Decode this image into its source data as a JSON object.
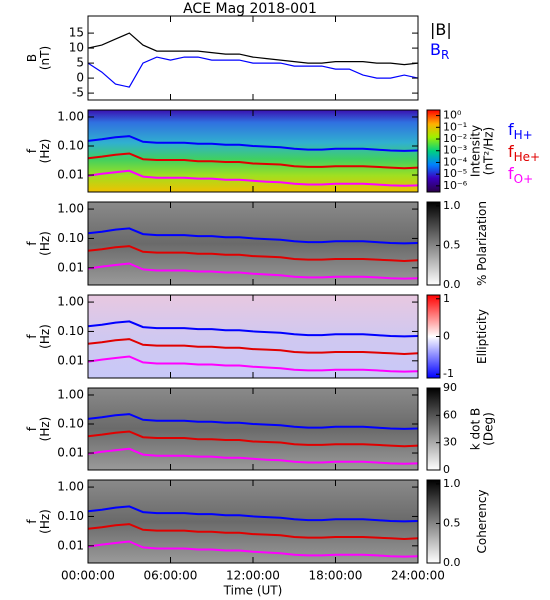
{
  "chart_data": [
    {
      "type": "line",
      "title": "ACE Mag 2018-001",
      "ylabel": [
        "B",
        "(nT)"
      ],
      "x": [
        0,
        1,
        2,
        3,
        4,
        5,
        6,
        7,
        8,
        9,
        10,
        11,
        12,
        13,
        14,
        15,
        16,
        17,
        18,
        19,
        20,
        21,
        22,
        23,
        24
      ],
      "xlim": [
        0,
        24
      ],
      "ylim": [
        -7.3,
        20.7
      ],
      "yticks": [
        -5,
        0,
        5,
        10,
        15
      ],
      "legend": true,
      "series": [
        {
          "name": "|B|",
          "color": "#000000",
          "values": [
            10,
            11,
            13,
            15,
            11,
            9,
            9,
            9,
            9,
            8.5,
            8,
            8,
            7,
            6.5,
            6,
            5.5,
            5,
            5,
            5.5,
            5.5,
            5.5,
            5,
            5,
            4.5,
            5
          ]
        },
        {
          "name": "B",
          "subscript": "R",
          "color": "#0000ff",
          "values": [
            5,
            2,
            -2,
            -3,
            5,
            7,
            6,
            7,
            7,
            6,
            6,
            6,
            5,
            5,
            5,
            4,
            4,
            4,
            3,
            3,
            1,
            0,
            0,
            1,
            0
          ]
        }
      ]
    },
    {
      "type": "spectrogram",
      "ylabel": [
        "f",
        "(Hz)"
      ],
      "ylog": true,
      "colormap": "rainbow",
      "x": [
        0,
        1,
        2,
        3,
        4,
        5,
        6,
        7,
        8,
        9,
        10,
        11,
        12,
        13,
        14,
        15,
        16,
        17,
        18,
        19,
        20,
        21,
        22,
        23,
        24
      ],
      "xlim": [
        0,
        24
      ],
      "ylim": [
        0.0026,
        1.74
      ],
      "yticks": [
        {
          "value": 0.01,
          "label": "0.01"
        },
        {
          "value": 0.1,
          "label": "0.10"
        },
        {
          "value": 1,
          "label": "1.00"
        }
      ],
      "clabel": [
        "Intensity",
        "(nT²/Hz)"
      ],
      "clog": true,
      "clim": [
        3e-07,
        3
      ],
      "cticks": [
        {
          "value": 1,
          "label": "10⁰"
        },
        {
          "value": 0.1,
          "label": "10⁻¹"
        },
        {
          "value": 0.01,
          "label": "10⁻²"
        },
        {
          "value": 0.001,
          "label": "10⁻³"
        },
        {
          "value": 0.0001,
          "label": "10⁻⁴"
        },
        {
          "value": 1e-05,
          "label": "10⁻⁵"
        },
        {
          "value": 1e-06,
          "label": "10⁻⁶"
        }
      ],
      "legend": true,
      "series": [
        {
          "name": "f",
          "subscript": "H+",
          "color": "#0000ff",
          "values": [
            0.15,
            0.17,
            0.2,
            0.22,
            0.14,
            0.13,
            0.13,
            0.13,
            0.12,
            0.12,
            0.11,
            0.11,
            0.1,
            0.095,
            0.09,
            0.08,
            0.075,
            0.075,
            0.08,
            0.08,
            0.08,
            0.075,
            0.07,
            0.068,
            0.07
          ]
        },
        {
          "name": "f",
          "subscript": "He+",
          "color": "#e00000",
          "values": [
            0.038,
            0.043,
            0.05,
            0.055,
            0.035,
            0.033,
            0.033,
            0.033,
            0.03,
            0.03,
            0.028,
            0.028,
            0.025,
            0.024,
            0.023,
            0.02,
            0.019,
            0.019,
            0.02,
            0.02,
            0.02,
            0.019,
            0.018,
            0.017,
            0.018
          ]
        },
        {
          "name": "f",
          "subscript": "O+",
          "color": "#ff00ff",
          "values": [
            0.0094,
            0.011,
            0.0125,
            0.014,
            0.0088,
            0.0081,
            0.0081,
            0.0081,
            0.0075,
            0.0075,
            0.0069,
            0.0069,
            0.0063,
            0.0059,
            0.0056,
            0.005,
            0.0047,
            0.0047,
            0.005,
            0.005,
            0.005,
            0.0047,
            0.0044,
            0.0043,
            0.0044
          ]
        }
      ]
    },
    {
      "type": "spectrogram",
      "ylabel": [
        "f",
        "(Hz)"
      ],
      "ylog": true,
      "colormap": "gray",
      "x": [
        0,
        1,
        2,
        3,
        4,
        5,
        6,
        7,
        8,
        9,
        10,
        11,
        12,
        13,
        14,
        15,
        16,
        17,
        18,
        19,
        20,
        21,
        22,
        23,
        24
      ],
      "xlim": [
        0,
        24
      ],
      "ylim": [
        0.0026,
        1.74
      ],
      "yticks": [
        {
          "value": 0.01,
          "label": "0.01"
        },
        {
          "value": 0.1,
          "label": "0.10"
        },
        {
          "value": 1,
          "label": "1.00"
        }
      ],
      "clabel": [
        "% Polarization"
      ],
      "clim": [
        0,
        1.05
      ],
      "cticks": [
        {
          "value": 0,
          "label": "0.0"
        },
        0.5,
        {
          "value": 1,
          "label": "1.0"
        }
      ],
      "series": [
        {
          "color": "#0000ff",
          "values": [
            0.15,
            0.17,
            0.2,
            0.22,
            0.14,
            0.13,
            0.13,
            0.13,
            0.12,
            0.12,
            0.11,
            0.11,
            0.1,
            0.095,
            0.09,
            0.08,
            0.075,
            0.075,
            0.08,
            0.08,
            0.08,
            0.075,
            0.07,
            0.068,
            0.07
          ]
        },
        {
          "color": "#e00000",
          "values": [
            0.038,
            0.043,
            0.05,
            0.055,
            0.035,
            0.033,
            0.033,
            0.033,
            0.03,
            0.03,
            0.028,
            0.028,
            0.025,
            0.024,
            0.023,
            0.02,
            0.019,
            0.019,
            0.02,
            0.02,
            0.02,
            0.019,
            0.018,
            0.017,
            0.018
          ]
        },
        {
          "color": "#ff00ff",
          "values": [
            0.0094,
            0.011,
            0.0125,
            0.014,
            0.0088,
            0.0081,
            0.0081,
            0.0081,
            0.0075,
            0.0075,
            0.0069,
            0.0069,
            0.0063,
            0.0059,
            0.0056,
            0.005,
            0.0047,
            0.0047,
            0.005,
            0.005,
            0.005,
            0.0047,
            0.0044,
            0.0043,
            0.0044
          ]
        }
      ]
    },
    {
      "type": "spectrogram",
      "ylabel": [
        "f",
        "(Hz)"
      ],
      "ylog": true,
      "colormap": "bwr",
      "x": [
        0,
        1,
        2,
        3,
        4,
        5,
        6,
        7,
        8,
        9,
        10,
        11,
        12,
        13,
        14,
        15,
        16,
        17,
        18,
        19,
        20,
        21,
        22,
        23,
        24
      ],
      "xlim": [
        0,
        24
      ],
      "ylim": [
        0.0026,
        1.74
      ],
      "yticks": [
        {
          "value": 0.01,
          "label": "0.01"
        },
        {
          "value": 0.1,
          "label": "0.10"
        },
        {
          "value": 1,
          "label": "1.00"
        }
      ],
      "clabel": [
        "Ellipticity"
      ],
      "clim": [
        -1.1,
        1.1
      ],
      "cticks": [
        -1,
        0,
        1
      ],
      "series": [
        {
          "color": "#0000ff",
          "values": [
            0.15,
            0.17,
            0.2,
            0.22,
            0.14,
            0.13,
            0.13,
            0.13,
            0.12,
            0.12,
            0.11,
            0.11,
            0.1,
            0.095,
            0.09,
            0.08,
            0.075,
            0.075,
            0.08,
            0.08,
            0.08,
            0.075,
            0.07,
            0.068,
            0.07
          ]
        },
        {
          "color": "#e00000",
          "values": [
            0.038,
            0.043,
            0.05,
            0.055,
            0.035,
            0.033,
            0.033,
            0.033,
            0.03,
            0.03,
            0.028,
            0.028,
            0.025,
            0.024,
            0.023,
            0.02,
            0.019,
            0.019,
            0.02,
            0.02,
            0.02,
            0.019,
            0.018,
            0.017,
            0.018
          ]
        },
        {
          "color": "#ff00ff",
          "values": [
            0.0094,
            0.011,
            0.0125,
            0.014,
            0.0088,
            0.0081,
            0.0081,
            0.0081,
            0.0075,
            0.0075,
            0.0069,
            0.0069,
            0.0063,
            0.0059,
            0.0056,
            0.005,
            0.0047,
            0.0047,
            0.005,
            0.005,
            0.005,
            0.0047,
            0.0044,
            0.0043,
            0.0044
          ]
        }
      ]
    },
    {
      "type": "spectrogram",
      "ylabel": [
        "f",
        "(Hz)"
      ],
      "ylog": true,
      "colormap": "gray",
      "x": [
        0,
        1,
        2,
        3,
        4,
        5,
        6,
        7,
        8,
        9,
        10,
        11,
        12,
        13,
        14,
        15,
        16,
        17,
        18,
        19,
        20,
        21,
        22,
        23,
        24
      ],
      "xlim": [
        0,
        24
      ],
      "ylim": [
        0.0026,
        1.74
      ],
      "yticks": [
        {
          "value": 0.01,
          "label": "0.01"
        },
        {
          "value": 0.1,
          "label": "0.10"
        },
        {
          "value": 1,
          "label": "1.00"
        }
      ],
      "clabel": [
        "k dot B",
        "(Deg)"
      ],
      "clim": [
        0,
        90
      ],
      "cticks": [
        0,
        30,
        60,
        90
      ],
      "series": [
        {
          "color": "#0000ff",
          "values": [
            0.15,
            0.17,
            0.2,
            0.22,
            0.14,
            0.13,
            0.13,
            0.13,
            0.12,
            0.12,
            0.11,
            0.11,
            0.1,
            0.095,
            0.09,
            0.08,
            0.075,
            0.075,
            0.08,
            0.08,
            0.08,
            0.075,
            0.07,
            0.068,
            0.07
          ]
        },
        {
          "color": "#e00000",
          "values": [
            0.038,
            0.043,
            0.05,
            0.055,
            0.035,
            0.033,
            0.033,
            0.033,
            0.03,
            0.03,
            0.028,
            0.028,
            0.025,
            0.024,
            0.023,
            0.02,
            0.019,
            0.019,
            0.02,
            0.02,
            0.02,
            0.019,
            0.018,
            0.017,
            0.018
          ]
        },
        {
          "color": "#ff00ff",
          "values": [
            0.0094,
            0.011,
            0.0125,
            0.014,
            0.0088,
            0.0081,
            0.0081,
            0.0081,
            0.0075,
            0.0075,
            0.0069,
            0.0069,
            0.0063,
            0.0059,
            0.0056,
            0.005,
            0.0047,
            0.0047,
            0.005,
            0.005,
            0.005,
            0.0047,
            0.0044,
            0.0043,
            0.0044
          ]
        }
      ]
    },
    {
      "type": "spectrogram",
      "ylabel": [
        "f",
        "(Hz)"
      ],
      "ylog": true,
      "colormap": "gray",
      "x": [
        0,
        1,
        2,
        3,
        4,
        5,
        6,
        7,
        8,
        9,
        10,
        11,
        12,
        13,
        14,
        15,
        16,
        17,
        18,
        19,
        20,
        21,
        22,
        23,
        24
      ],
      "xlim": [
        0,
        24
      ],
      "ylim": [
        0.0026,
        1.74
      ],
      "yticks": [
        {
          "value": 0.01,
          "label": "0.01"
        },
        {
          "value": 0.1,
          "label": "0.10"
        },
        {
          "value": 1,
          "label": "1.00"
        }
      ],
      "clabel": [
        "Coherency"
      ],
      "clim": [
        0,
        1.05
      ],
      "cticks": [
        {
          "value": 0,
          "label": "0.0"
        },
        0.5,
        {
          "value": 1,
          "label": "1.0"
        }
      ],
      "xlabel": "Time (UT)",
      "xticks": [
        {
          "value": 0,
          "label": "00:00:00"
        },
        {
          "value": 6,
          "label": "06:00:00"
        },
        {
          "value": 12,
          "label": "12:00:00"
        },
        {
          "value": 18,
          "label": "18:00:00"
        },
        {
          "value": 24,
          "label": "24:00:00"
        }
      ],
      "series": [
        {
          "color": "#0000ff",
          "values": [
            0.15,
            0.17,
            0.2,
            0.22,
            0.14,
            0.13,
            0.13,
            0.13,
            0.12,
            0.12,
            0.11,
            0.11,
            0.1,
            0.095,
            0.09,
            0.08,
            0.075,
            0.075,
            0.08,
            0.08,
            0.08,
            0.075,
            0.07,
            0.068,
            0.07
          ]
        },
        {
          "color": "#e00000",
          "values": [
            0.038,
            0.043,
            0.05,
            0.055,
            0.035,
            0.033,
            0.033,
            0.033,
            0.03,
            0.03,
            0.028,
            0.028,
            0.025,
            0.024,
            0.023,
            0.02,
            0.019,
            0.019,
            0.02,
            0.02,
            0.02,
            0.019,
            0.018,
            0.017,
            0.018
          ]
        },
        {
          "color": "#ff00ff",
          "values": [
            0.0094,
            0.011,
            0.0125,
            0.014,
            0.0088,
            0.0081,
            0.0081,
            0.0081,
            0.0075,
            0.0075,
            0.0069,
            0.0069,
            0.0063,
            0.0059,
            0.0056,
            0.005,
            0.0047,
            0.0047,
            0.005,
            0.005,
            0.005,
            0.0047,
            0.0044,
            0.0043,
            0.0044
          ]
        }
      ]
    }
  ]
}
